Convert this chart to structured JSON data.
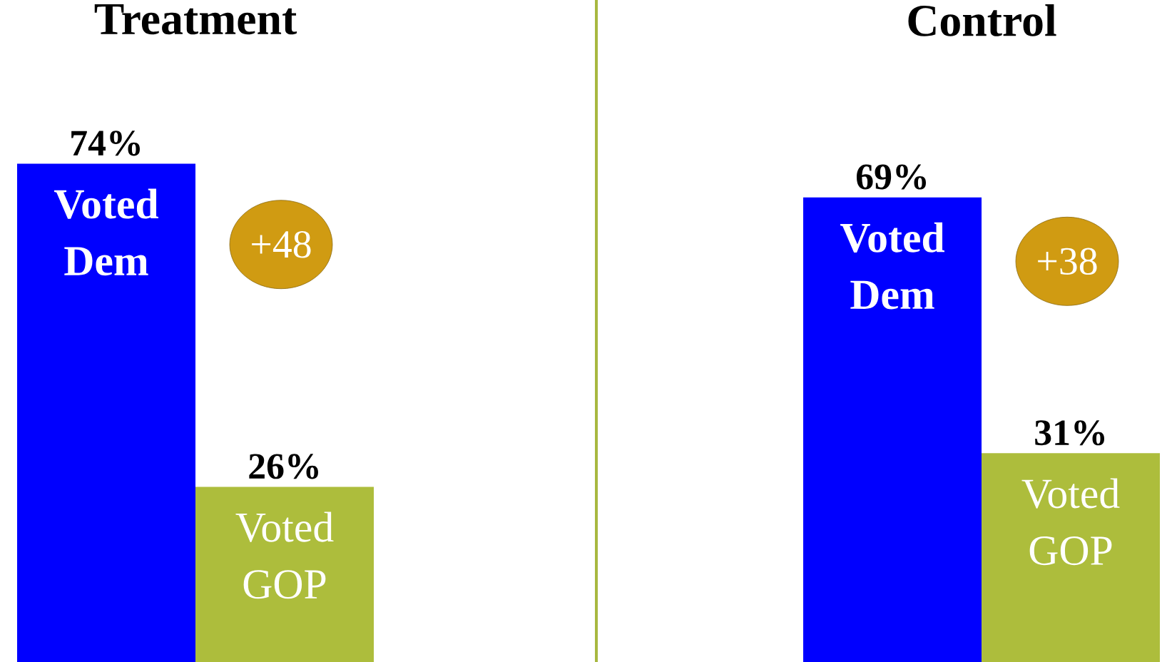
{
  "chart_data": [
    {
      "type": "bar",
      "title": "Treatment",
      "categories": [
        "Voted Dem",
        "Voted GOP"
      ],
      "values": [
        74,
        26
      ],
      "colors": [
        "#0000ff",
        "#adbd3c"
      ],
      "value_labels": [
        "74%",
        "26%"
      ],
      "annotations": [
        "+48"
      ]
    },
    {
      "type": "bar",
      "title": "Control",
      "categories": [
        "Voted Dem",
        "Voted GOP"
      ],
      "values": [
        69,
        31
      ],
      "colors": [
        "#0000ff",
        "#adbd3c"
      ],
      "value_labels": [
        "69%",
        "31%"
      ],
      "annotations": [
        "+38"
      ]
    }
  ]
}
